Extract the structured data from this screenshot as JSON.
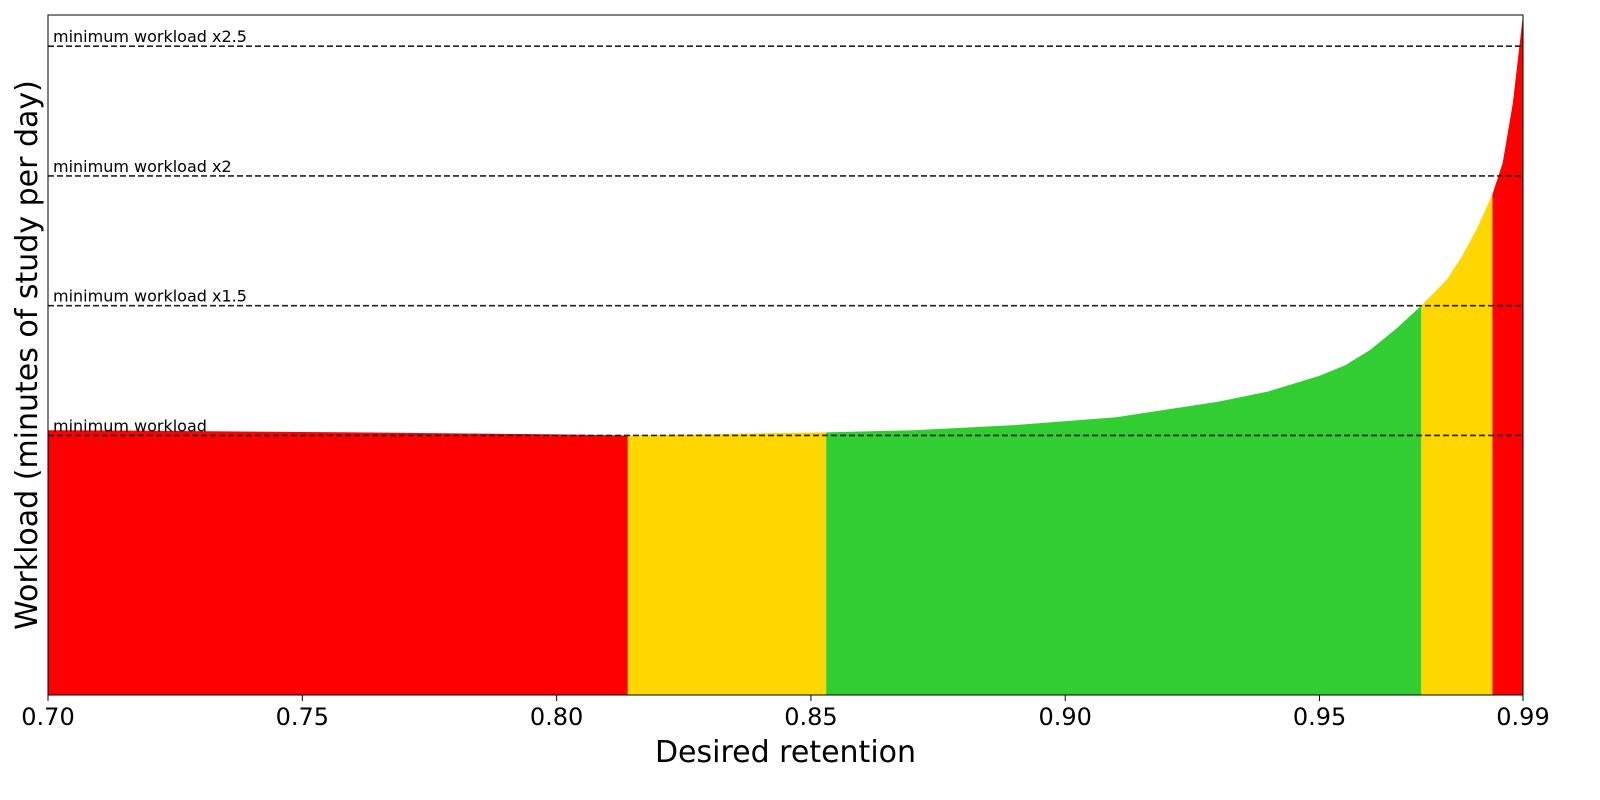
{
  "chart_data": {
    "type": "area",
    "title": "",
    "xlabel": "Desired retention",
    "ylabel": "Workload (minutes of study per day)",
    "xlim": [
      0.7,
      0.99
    ],
    "ylim": [
      0,
      2.62
    ],
    "x_ticks": [
      0.7,
      0.75,
      0.8,
      0.85,
      0.9,
      0.95,
      0.99
    ],
    "x_tick_labels": [
      "0.70",
      "0.75",
      "0.80",
      "0.85",
      "0.90",
      "0.95",
      "0.99"
    ],
    "y_ticks_shown": false,
    "grid": false,
    "curve": {
      "x": [
        0.7,
        0.72,
        0.74,
        0.76,
        0.78,
        0.8,
        0.814,
        0.83,
        0.853,
        0.87,
        0.89,
        0.91,
        0.915,
        0.93,
        0.94,
        0.95,
        0.955,
        0.96,
        0.965,
        0.97,
        0.975,
        0.978,
        0.981,
        0.984,
        0.986,
        0.988,
        0.99
      ],
      "y": [
        1.02,
        1.018,
        1.015,
        1.012,
        1.008,
        1.004,
        1.0,
        1.005,
        1.012,
        1.02,
        1.04,
        1.07,
        1.085,
        1.13,
        1.17,
        1.23,
        1.27,
        1.33,
        1.41,
        1.5,
        1.6,
        1.69,
        1.8,
        1.93,
        2.05,
        2.28,
        2.62
      ]
    },
    "bands": [
      {
        "x_start": 0.7,
        "x_end": 0.814,
        "color": "#ff0000"
      },
      {
        "x_start": 0.814,
        "x_end": 0.853,
        "color": "#ffd700"
      },
      {
        "x_start": 0.853,
        "x_end": 0.97,
        "color": "#32cd32"
      },
      {
        "x_start": 0.97,
        "x_end": 0.984,
        "color": "#ffd700"
      },
      {
        "x_start": 0.984,
        "x_end": 0.99,
        "color": "#ff0000"
      }
    ],
    "reference_lines": [
      {
        "y": 1.0,
        "label": "minimum workload"
      },
      {
        "y": 1.5,
        "label": "minimum workload x1.5"
      },
      {
        "y": 2.0,
        "label": "minimum workload x2"
      },
      {
        "y": 2.5,
        "label": "minimum workload x2.5"
      }
    ]
  }
}
